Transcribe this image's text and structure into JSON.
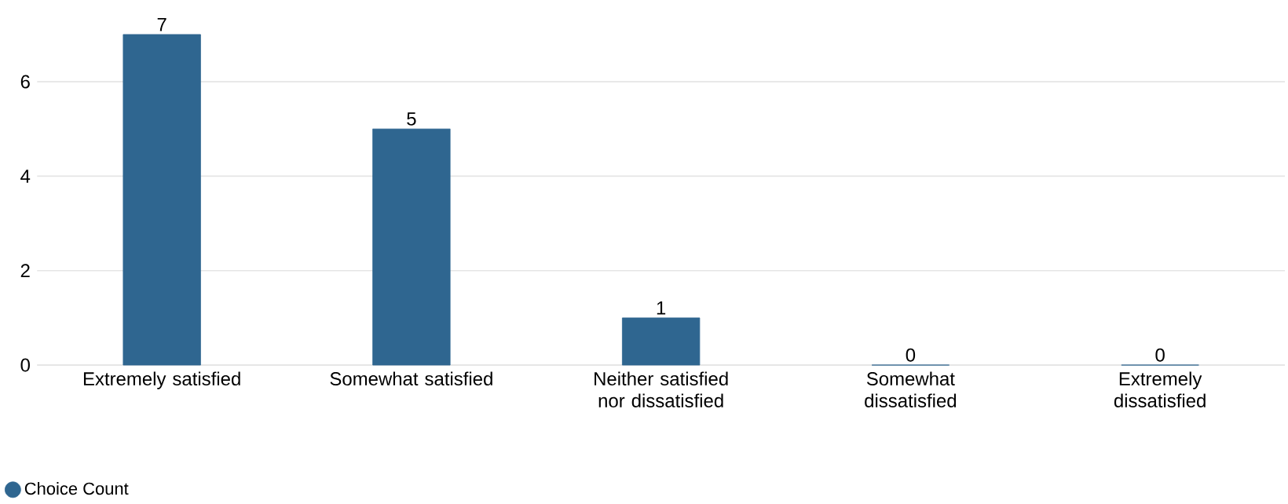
{
  "chart_data": {
    "type": "bar",
    "categories": [
      "Extremely satisfied",
      "Somewhat satisfied",
      "Neither satisfied nor dissatisfied",
      "Somewhat dissatisfied",
      "Extremely dissatisfied"
    ],
    "series": [
      {
        "name": "Choice Count",
        "color": "#2f6690",
        "values": [
          7,
          5,
          1,
          0,
          0
        ]
      }
    ],
    "ylim": [
      0,
      7
    ],
    "yticks": [
      0,
      2,
      4,
      6
    ],
    "grid": "y",
    "legend": "bottom left",
    "data_labels": true
  }
}
